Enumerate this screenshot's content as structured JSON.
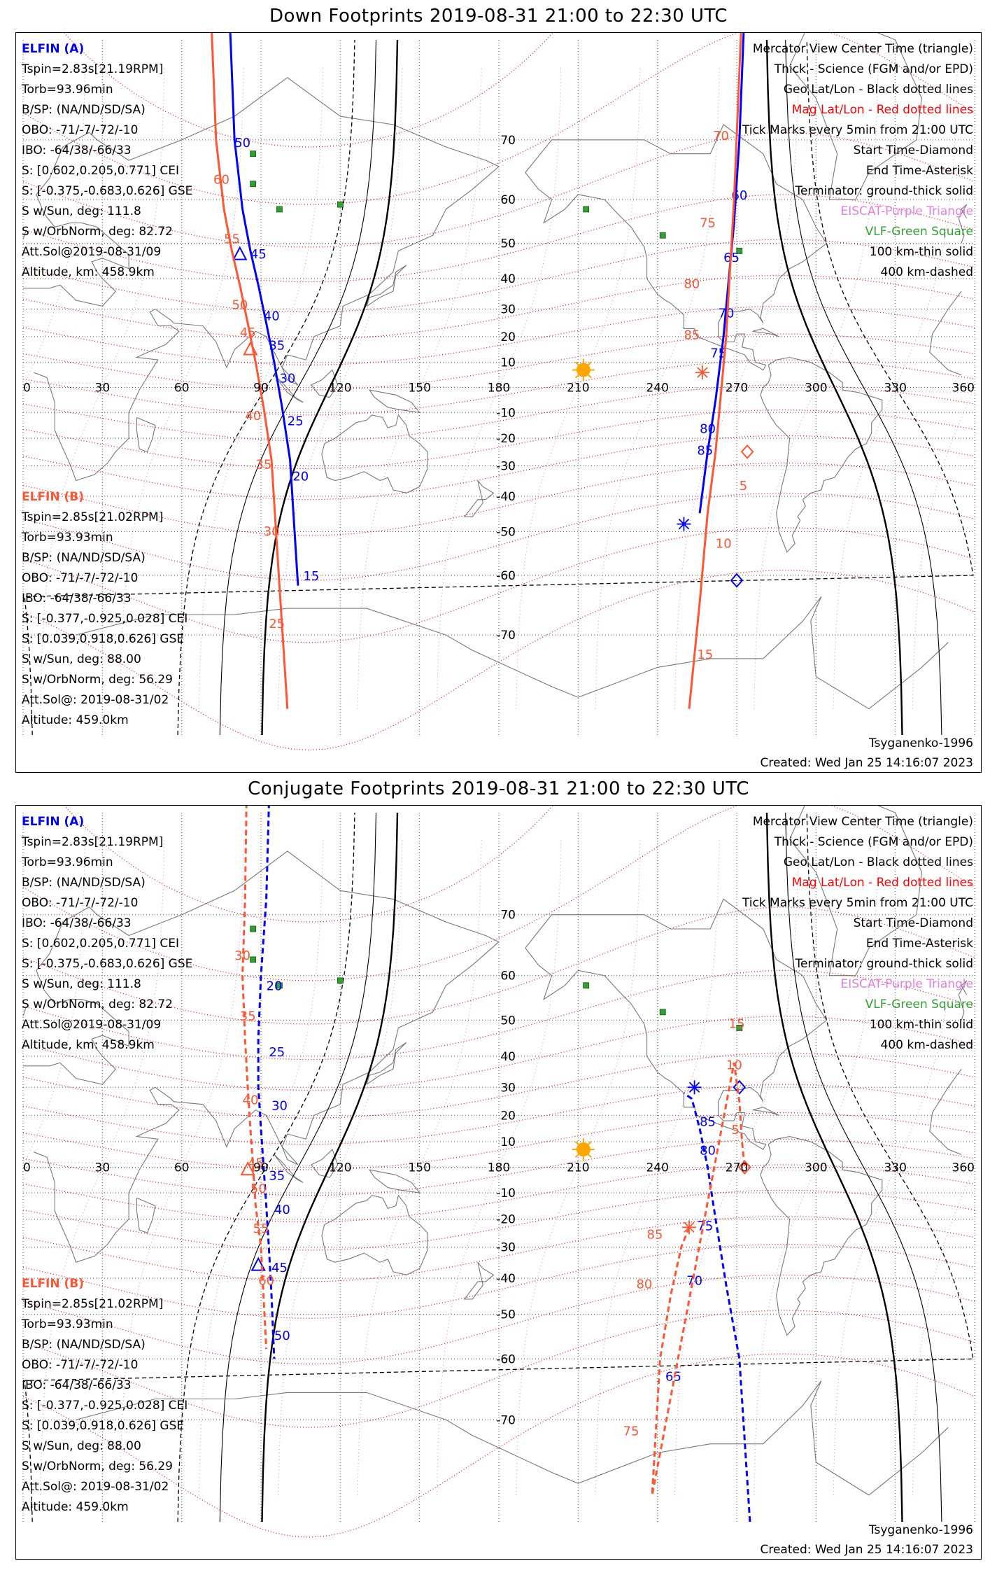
{
  "panels": [
    {
      "title": "Down Footprints 2019-08-31 21:00 to 22:30 UTC",
      "legend": [
        {
          "text": "Mercator View Center Time (triangle)",
          "color": "#000000"
        },
        {
          "text": "Thick - Science (FGM and/or EPD)",
          "color": "#000000"
        },
        {
          "text": "Geo Lat/Lon - Black dotted lines",
          "color": "#000000"
        },
        {
          "text": "Mag Lat/Lon - Red dotted lines",
          "color": "#ff0000"
        },
        {
          "text": "Tick Marks every 5min from 21:00 UTC",
          "color": "#000000"
        },
        {
          "text": "Start Time-Diamond",
          "color": "#000000"
        },
        {
          "text": "End Time-Asterisk",
          "color": "#000000"
        },
        {
          "text": "Terminator: ground-thick solid",
          "color": "#000000"
        },
        {
          "text": "EISCAT-Purple Triangle",
          "color": "#e37ee3"
        },
        {
          "text": "VLF-Green Square",
          "color": "#33a033"
        },
        {
          "text": "100 km-thin solid",
          "color": "#000000"
        },
        {
          "text": "400 km-dashed",
          "color": "#000000"
        }
      ],
      "info_a": {
        "name": "ELFIN (A)",
        "lines": [
          "Tspin=2.83s[21.19RPM]",
          "Torb=93.96min",
          "B/SP: (NA/ND/SD/SA)",
          "OBO: -71/-7/-72/-10",
          "IBO: -64/38/-66/33",
          "S: [0.602,0.205,0.771] CEI",
          "S: [-0.375,-0.683,0.626] GSE",
          "S w/Sun, deg: 111.8",
          "S w/OrbNorm, deg: 82.72",
          "Att.Sol@2019-08-31/09",
          "Altitude, km: 458.9km"
        ]
      },
      "info_b": {
        "name": "ELFIN (B)",
        "lines": [
          "Tspin=2.85s[21.02RPM]",
          "Torb=93.93min",
          "B/SP: (NA/ND/SD/SA)",
          "OBO: -71/-7/-72/-10",
          "IBO: -64/38/-66/33",
          "S: [-0.377,-0.925,0.028] CEI",
          "S: [0.039,0.918,0.626] GSE",
          "S w/Sun, deg: 88.00",
          "S w/OrbNorm, deg: 56.29",
          "Att.Sol@: 2019-08-31/02",
          "Altitude: 459.0km"
        ]
      },
      "footer_left": "Tsyganenko-1996",
      "footer_right": "Created: Wed Jan 25 14:16:07 2023"
    },
    {
      "title": "Conjugate Footprints 2019-08-31 21:00 to 22:30 UTC",
      "legend": [
        {
          "text": "Mercator View Center Time (triangle)",
          "color": "#000000"
        },
        {
          "text": "Thick - Science (FGM and/or EPD)",
          "color": "#000000"
        },
        {
          "text": "Geo Lat/Lon - Black dotted lines",
          "color": "#000000"
        },
        {
          "text": "Mag Lat/Lon - Red dotted lines",
          "color": "#ff0000"
        },
        {
          "text": "Tick Marks every 5min from 21:00 UTC",
          "color": "#000000"
        },
        {
          "text": "Start Time-Diamond",
          "color": "#000000"
        },
        {
          "text": "End Time-Asterisk",
          "color": "#000000"
        },
        {
          "text": "Terminator: ground-thick solid",
          "color": "#000000"
        },
        {
          "text": "EISCAT-Purple Triangle",
          "color": "#e37ee3"
        },
        {
          "text": "VLF-Green Square",
          "color": "#33a033"
        },
        {
          "text": "100 km-thin solid",
          "color": "#000000"
        },
        {
          "text": "400 km-dashed",
          "color": "#000000"
        }
      ],
      "info_a": {
        "name": "ELFIN (A)",
        "lines": [
          "Tspin=2.83s[21.19RPM]",
          "Torb=93.96min",
          "B/SP: (NA/ND/SD/SA)",
          "OBO: -71/-7/-72/-10",
          "IBO: -64/38/-66/33",
          "S: [0.602,0.205,0.771] CEI",
          "S: [-0.375,-0.683,0.626] GSE",
          "S w/Sun, deg: 111.8",
          "S w/OrbNorm, deg: 82.72",
          "Att.Sol@2019-08-31/09",
          "Altitude, km: 458.9km"
        ]
      },
      "info_b": {
        "name": "ELFIN (B)",
        "lines": [
          "Tspin=2.85s[21.02RPM]",
          "Torb=93.93min",
          "B/SP: (NA/ND/SD/SA)",
          "OBO: -71/-7/-72/-10",
          "IBO: -64/38/-66/33",
          "S: [-0.377,-0.925,0.028] CEI",
          "S: [0.039,0.918,0.626] GSE",
          "S w/Sun, deg: 88.00",
          "S w/OrbNorm, deg: 56.29",
          "Att.Sol@: 2019-08-31/02",
          "Altitude: 459.0km"
        ]
      },
      "footer_left": "Tsyganenko-1996",
      "footer_right": "Created: Wed Jan 25 14:16:07 2023"
    }
  ],
  "chart_data": [
    {
      "type": "line",
      "title": "Down Footprints 2019-08-31 21:00 to 22:30 UTC",
      "projection": "mercator",
      "xlim": [
        0,
        360
      ],
      "ylim": [
        -80,
        80
      ],
      "x_ticks": [
        0,
        30,
        60,
        90,
        120,
        150,
        180,
        210,
        240,
        270,
        300,
        330,
        360
      ],
      "y_ticks": [
        70,
        60,
        50,
        40,
        30,
        20,
        10,
        -10,
        -20,
        -30,
        -40,
        -50,
        -60,
        -70
      ],
      "colors": {
        "elfin_a": "#0000ff",
        "elfin_b": "#ff5533",
        "terminator": "#000000",
        "sun": "#ffa500"
      },
      "sun": {
        "lon": 212,
        "lat": 7
      },
      "vlf_stations": [
        [
          87,
          68
        ],
        [
          87,
          63
        ],
        [
          97,
          58
        ],
        [
          120,
          59
        ],
        [
          213,
          58
        ],
        [
          242,
          52
        ],
        [
          271,
          48
        ]
      ],
      "series": [
        {
          "name": "ELFIN (A)",
          "color": "#0000ff",
          "lon": [
            77,
            80,
            83,
            86,
            89,
            92,
            95,
            98,
            101,
            104,
            256,
            259,
            262,
            265,
            267,
            269,
            271,
            273
          ],
          "lat": [
            85,
            70,
            58,
            48,
            38,
            25,
            10,
            -8,
            -28,
            -62,
            -45,
            -25,
            -5,
            20,
            40,
            55,
            70,
            82
          ],
          "ticks": [
            {
              "label": "50",
              "lon": 80,
              "lat": 69
            },
            {
              "label": "45",
              "lon": 86,
              "lat": 46
            },
            {
              "label": "40",
              "lon": 91,
              "lat": 26
            },
            {
              "label": "35",
              "lon": 93,
              "lat": 15
            },
            {
              "label": "30",
              "lon": 97,
              "lat": 2
            },
            {
              "label": "25",
              "lon": 100,
              "lat": -15
            },
            {
              "label": "20",
              "lon": 102,
              "lat": -35
            },
            {
              "label": "15",
              "lon": 106,
              "lat": -61
            },
            {
              "label": "85",
              "lon": 255,
              "lat": -26
            },
            {
              "label": "80",
              "lon": 256,
              "lat": -18
            },
            {
              "label": "75",
              "lon": 260,
              "lat": 12
            },
            {
              "label": "70",
              "lon": 263,
              "lat": 27
            },
            {
              "label": "65",
              "lon": 265,
              "lat": 45
            },
            {
              "label": "60",
              "lon": 268,
              "lat": 60
            }
          ],
          "start": {
            "lon": 270,
            "lat": -61
          },
          "end": {
            "lon": 250,
            "lat": -48
          },
          "center": {
            "lon": 82,
            "lat": 47
          }
        },
        {
          "name": "ELFIN (B)",
          "color": "#ff5533",
          "lon": [
            70,
            73,
            76,
            79,
            82,
            85,
            88,
            91,
            94,
            97,
            100,
            252,
            256,
            259,
            262,
            266,
            269,
            272
          ],
          "lat": [
            85,
            70,
            58,
            48,
            38,
            25,
            10,
            -8,
            -28,
            -62,
            -78,
            -78,
            -65,
            -45,
            -25,
            20,
            60,
            82
          ],
          "ticks": [
            {
              "label": "60",
              "lon": 72,
              "lat": 63
            },
            {
              "label": "55",
              "lon": 76,
              "lat": 50
            },
            {
              "label": "50",
              "lon": 79,
              "lat": 30
            },
            {
              "label": "45",
              "lon": 82,
              "lat": 20
            },
            {
              "label": "40",
              "lon": 84,
              "lat": -13
            },
            {
              "label": "35",
              "lon": 88,
              "lat": -31
            },
            {
              "label": "30",
              "lon": 91,
              "lat": -51
            },
            {
              "label": "25",
              "lon": 93,
              "lat": -69
            },
            {
              "label": "5",
              "lon": 271,
              "lat": -38
            },
            {
              "label": "10",
              "lon": 262,
              "lat": -54
            },
            {
              "label": "15",
              "lon": 255,
              "lat": -73
            },
            {
              "label": "85",
              "lon": 250,
              "lat": 19
            },
            {
              "label": "80",
              "lon": 250,
              "lat": 37
            },
            {
              "label": "75",
              "lon": 256,
              "lat": 54
            },
            {
              "label": "70",
              "lon": 261,
              "lat": 70
            }
          ],
          "start": {
            "lon": 274,
            "lat": -25
          },
          "end": {
            "lon": 257,
            "lat": 6
          },
          "center": {
            "lon": 86,
            "lat": 15
          }
        }
      ]
    },
    {
      "type": "line",
      "title": "Conjugate Footprints 2019-08-31 21:00 to 22:30 UTC",
      "projection": "mercator",
      "xlim": [
        0,
        360
      ],
      "ylim": [
        -80,
        80
      ],
      "x_ticks": [
        0,
        30,
        60,
        90,
        120,
        150,
        180,
        210,
        240,
        270,
        300,
        330,
        360
      ],
      "y_ticks": [
        70,
        60,
        50,
        40,
        30,
        20,
        10,
        -10,
        -20,
        -30,
        -40,
        -50,
        -60,
        -70
      ],
      "colors": {
        "elfin_a": "#0000ff",
        "elfin_b": "#ff5533",
        "terminator": "#000000",
        "sun": "#ffa500"
      },
      "sun": {
        "lon": 212,
        "lat": 7
      },
      "vlf_stations": [
        [
          87,
          68
        ],
        [
          87,
          63
        ],
        [
          97,
          58
        ],
        [
          120,
          59
        ],
        [
          213,
          58
        ],
        [
          242,
          52
        ],
        [
          271,
          48
        ]
      ],
      "series": [
        {
          "name": "ELFIN (A)",
          "color": "#0000ff",
          "dashed": true,
          "lon": [
            94,
            92,
            90,
            89,
            89,
            90,
            91,
            92,
            93,
            94,
            95,
            275,
            271,
            266,
            262,
            259,
            256,
            253,
            250
          ],
          "lat": [
            85,
            72,
            60,
            45,
            30,
            15,
            0,
            -15,
            -30,
            -45,
            -60,
            -80,
            -60,
            -42,
            -20,
            0,
            15,
            26,
            28
          ],
          "ticks": [
            {
              "label": "20",
              "lon": 92,
              "lat": 57
            },
            {
              "label": "25",
              "lon": 93,
              "lat": 40
            },
            {
              "label": "30",
              "lon": 94,
              "lat": 22
            },
            {
              "label": "35",
              "lon": 93,
              "lat": -5
            },
            {
              "label": "40",
              "lon": 95,
              "lat": -18
            },
            {
              "label": "45",
              "lon": 94,
              "lat": -38
            },
            {
              "label": "50",
              "lon": 95,
              "lat": -56
            },
            {
              "label": "85",
              "lon": 256,
              "lat": 16
            },
            {
              "label": "80",
              "lon": 256,
              "lat": 5
            },
            {
              "label": "75",
              "lon": 255,
              "lat": -24
            },
            {
              "label": "70",
              "lon": 251,
              "lat": -42
            },
            {
              "label": "65",
              "lon": 243,
              "lat": -64
            }
          ],
          "start": {
            "lon": 271,
            "lat": 30
          },
          "end": {
            "lon": 254,
            "lat": 30
          },
          "center": {
            "lon": 89,
            "lat": -36
          }
        },
        {
          "name": "ELFIN (B)",
          "color": "#ff5533",
          "dashed": true,
          "lon": [
            85,
            84,
            83,
            84,
            85,
            86,
            87,
            88,
            90,
            92,
            252,
            249,
            245,
            241,
            238,
            269,
            271,
            272,
            273
          ],
          "lat": [
            85,
            72,
            60,
            45,
            30,
            15,
            0,
            -15,
            -30,
            -58,
            -23,
            -30,
            -45,
            -60,
            -78,
            38,
            25,
            10,
            0
          ],
          "ticks": [
            {
              "label": "30",
              "lon": 80,
              "lat": 63
            },
            {
              "label": "35",
              "lon": 82,
              "lat": 50
            },
            {
              "label": "40",
              "lon": 83,
              "lat": 24
            },
            {
              "label": "45",
              "lon": 85,
              "lat": 0
            },
            {
              "label": "50",
              "lon": 86,
              "lat": -10
            },
            {
              "label": "55",
              "lon": 87,
              "lat": -25
            },
            {
              "label": "60",
              "lon": 89,
              "lat": -42
            },
            {
              "label": "85",
              "lon": 236,
              "lat": -27
            },
            {
              "label": "80",
              "lon": 232,
              "lat": -43
            },
            {
              "label": "75",
              "lon": 227,
              "lat": -72
            },
            {
              "label": "15",
              "lon": 267,
              "lat": 48
            },
            {
              "label": "10",
              "lon": 266,
              "lat": 36
            },
            {
              "label": "5",
              "lon": 268,
              "lat": 13
            }
          ],
          "start": {
            "lon": 273,
            "lat": 0
          },
          "end": {
            "lon": 252,
            "lat": -23
          },
          "center": {
            "lon": 85,
            "lat": -1
          }
        }
      ]
    }
  ]
}
